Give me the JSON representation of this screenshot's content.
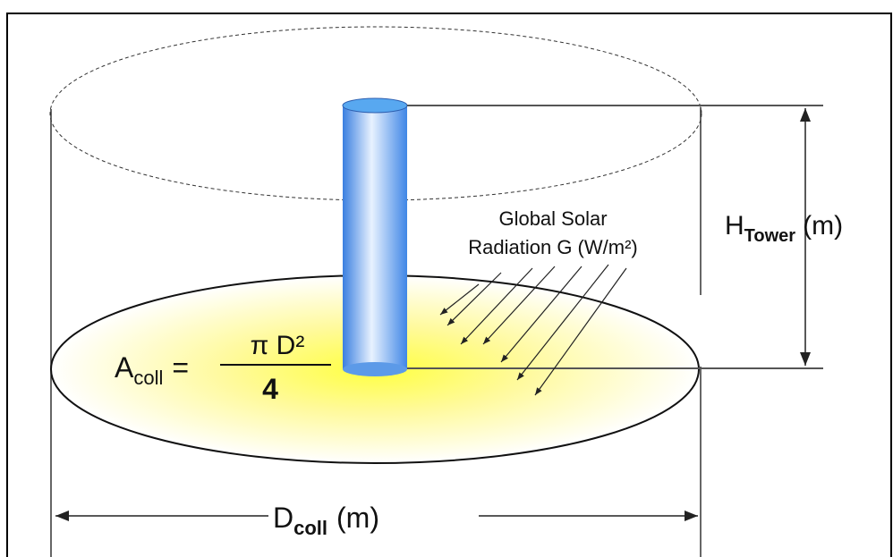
{
  "labels": {
    "radiation": [
      "Global Solar",
      "Radiation G (W/m²)"
    ],
    "tower_height": {
      "symbol": "H",
      "subscript": "Tower",
      "unit": "(m)"
    },
    "collector_area": {
      "symbol": "A",
      "subscript": "coll",
      "equals": "=",
      "numerator": "π D²",
      "denominator": "4"
    },
    "collector_diameter": {
      "symbol": "D",
      "subscript": "coll",
      "unit": "(m)"
    }
  }
}
